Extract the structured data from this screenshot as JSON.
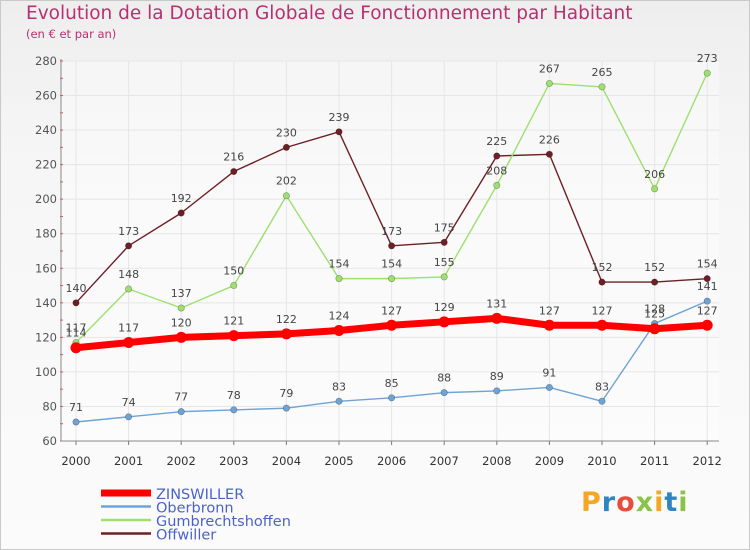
{
  "title": "Evolution de la Dotation Globale de Fonctionnement par Habitant",
  "subtitle": "(en € et par an)",
  "logo": {
    "letters": [
      "P",
      "r",
      "o",
      "x",
      "i",
      "t",
      "i"
    ],
    "colors": [
      "#f5a623",
      "#2e86c1",
      "#e74c3c",
      "#8bc34a",
      "#f5a623",
      "#2e86c1",
      "#8bc34a"
    ]
  },
  "chart_data": {
    "type": "line",
    "title": "Evolution de la Dotation Globale de Fonctionnement par Habitant",
    "subtitle": "(en € et par an)",
    "xlabel": "",
    "ylabel": "",
    "categories": [
      "2000",
      "2001",
      "2002",
      "2003",
      "2004",
      "2005",
      "2006",
      "2007",
      "2008",
      "2009",
      "2010",
      "2011",
      "2012"
    ],
    "ylim": [
      60,
      280
    ],
    "yticks": [
      60,
      80,
      100,
      120,
      140,
      160,
      180,
      200,
      220,
      240,
      260,
      280
    ],
    "grid": true,
    "legend_position": "bottom-left",
    "series": [
      {
        "name": "ZINSWILLER",
        "color": "#ff0000",
        "values": [
          114,
          117,
          120,
          121,
          122,
          124,
          127,
          129,
          131,
          127,
          127,
          125,
          127
        ]
      },
      {
        "name": "Oberbronn",
        "color": "#6fa3d6",
        "values": [
          71,
          74,
          77,
          78,
          79,
          83,
          85,
          88,
          89,
          91,
          83,
          128,
          141
        ]
      },
      {
        "name": "Gumbrechtshoffen",
        "color": "#9ee06f",
        "values": [
          117,
          148,
          137,
          150,
          202,
          154,
          154,
          155,
          208,
          267,
          265,
          206,
          273
        ]
      },
      {
        "name": "Offwiller",
        "color": "#6e1f25",
        "values": [
          140,
          173,
          192,
          216,
          230,
          239,
          173,
          175,
          225,
          226,
          152,
          152,
          154
        ]
      }
    ]
  }
}
